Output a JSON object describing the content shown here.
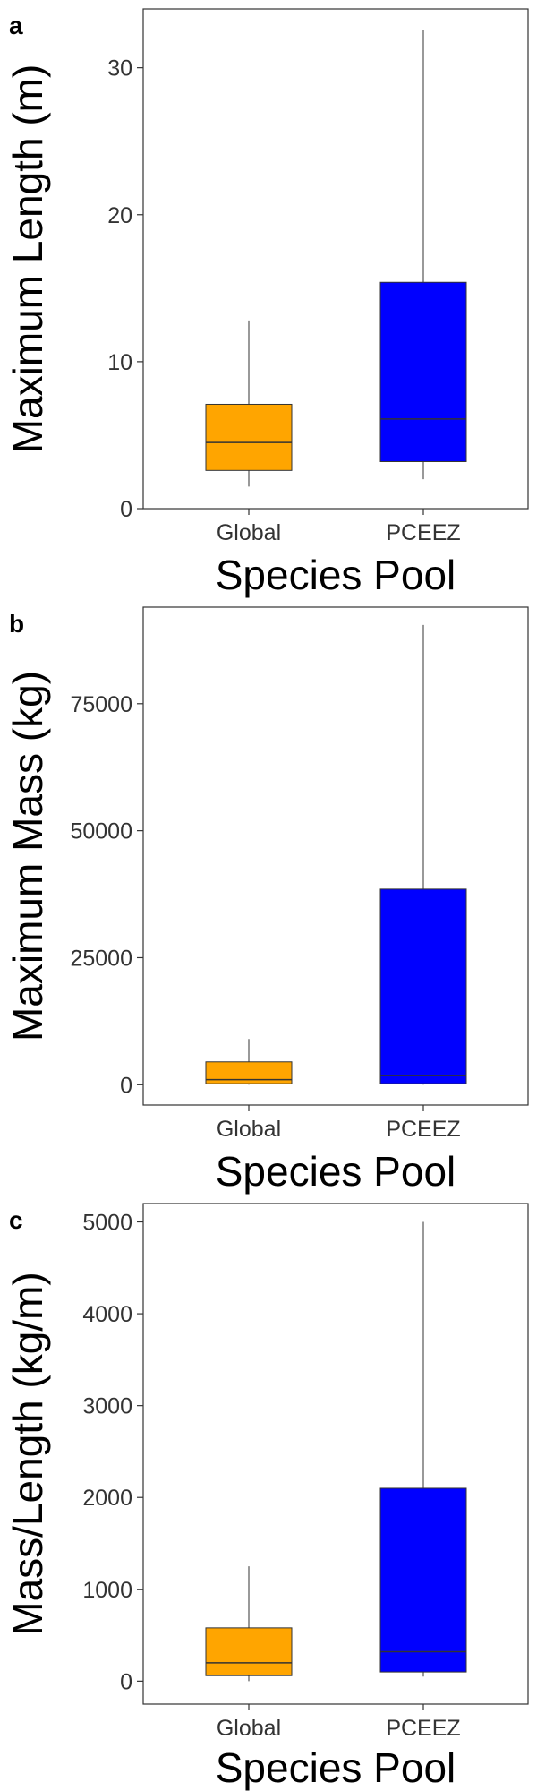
{
  "chart_data": [
    {
      "panel": "a",
      "type": "boxplot",
      "xlabel": "Species Pool",
      "ylabel": "Maximum Length (m)",
      "ylim": [
        0,
        34
      ],
      "yticks": [
        0,
        10,
        20,
        30
      ],
      "categories": [
        "Global",
        "PCEEZ"
      ],
      "colors": [
        "#FFA500",
        "#0000FF"
      ],
      "boxes": [
        {
          "category": "Global",
          "whisker_low": 1.5,
          "q1": 2.6,
          "median": 4.5,
          "q3": 7.1,
          "whisker_high": 12.8
        },
        {
          "category": "PCEEZ",
          "whisker_low": 2.0,
          "q1": 3.2,
          "median": 6.1,
          "q3": 15.4,
          "whisker_high": 32.6
        }
      ]
    },
    {
      "panel": "b",
      "type": "boxplot",
      "xlabel": "Species Pool",
      "ylabel": "Maximum Mass (kg)",
      "ylim": [
        -4000,
        94000
      ],
      "yticks": [
        0,
        25000,
        50000,
        75000
      ],
      "categories": [
        "Global",
        "PCEEZ"
      ],
      "colors": [
        "#FFA500",
        "#0000FF"
      ],
      "boxes": [
        {
          "category": "Global",
          "whisker_low": 0,
          "q1": 200,
          "median": 1000,
          "q3": 4500,
          "whisker_high": 9000
        },
        {
          "category": "PCEEZ",
          "whisker_low": 0,
          "q1": 200,
          "median": 1800,
          "q3": 38500,
          "whisker_high": 90500
        }
      ]
    },
    {
      "panel": "c",
      "type": "boxplot",
      "xlabel": "Species Pool",
      "ylabel": "Mass/Length (kg/m)",
      "ylim": [
        -250,
        5200
      ],
      "yticks": [
        0,
        1000,
        2000,
        3000,
        4000,
        5000
      ],
      "categories": [
        "Global",
        "PCEEZ"
      ],
      "colors": [
        "#FFA500",
        "#0000FF"
      ],
      "boxes": [
        {
          "category": "Global",
          "whisker_low": 0,
          "q1": 60,
          "median": 200,
          "q3": 580,
          "whisker_high": 1250
        },
        {
          "category": "PCEEZ",
          "whisker_low": 50,
          "q1": 100,
          "median": 320,
          "q3": 2100,
          "whisker_high": 5000
        }
      ]
    }
  ]
}
